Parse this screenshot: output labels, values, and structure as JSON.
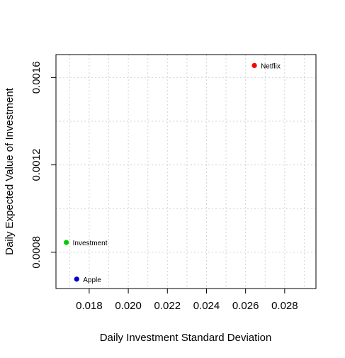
{
  "chart_data": {
    "type": "scatter",
    "title": "",
    "xlabel": "Daily Investment Standard Deviation",
    "ylabel": "Daily Expected Value of Investment",
    "xlim": [
      0.0163,
      0.0296
    ],
    "ylim": [
      0.000634,
      0.001705
    ],
    "x_ticks": [
      0.018,
      0.02,
      0.022,
      0.024,
      0.026,
      0.028
    ],
    "x_tick_labels": [
      "0.018",
      "0.020",
      "0.022",
      "0.024",
      "0.026",
      "0.028"
    ],
    "y_ticks": [
      0.0008,
      0.0012,
      0.0016
    ],
    "y_tick_labels": [
      "0.0008",
      "0.0012",
      "0.0016"
    ],
    "grid": true,
    "points": [
      {
        "label": "Netflix",
        "x": 0.02645,
        "y": 0.001655,
        "color": "#ff0000"
      },
      {
        "label": "Investment",
        "x": 0.01683,
        "y": 0.000845,
        "color": "#00cd00"
      },
      {
        "label": "Apple",
        "x": 0.01736,
        "y": 0.000677,
        "color": "#0000cd"
      }
    ]
  }
}
